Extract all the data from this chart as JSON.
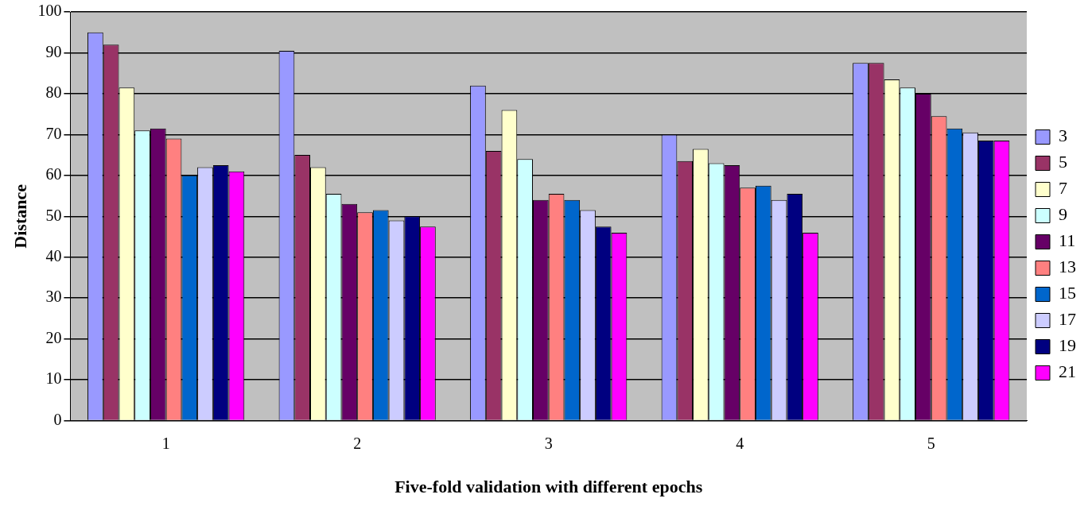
{
  "chart_data": {
    "type": "bar",
    "xlabel": "Five-fold validation with different epochs",
    "ylabel": "Distance",
    "categories": [
      "1",
      "2",
      "3",
      "4",
      "5"
    ],
    "series": [
      {
        "name": "3",
        "color": "#9999ff",
        "values": [
          95,
          90.5,
          82,
          70,
          87.5
        ]
      },
      {
        "name": "5",
        "color": "#993366",
        "values": [
          92,
          65,
          66,
          63.5,
          87.5
        ]
      },
      {
        "name": "7",
        "color": "#ffffcc",
        "values": [
          81.5,
          62,
          76,
          66.5,
          83.5
        ]
      },
      {
        "name": "9",
        "color": "#ccffff",
        "values": [
          71,
          55.5,
          64,
          63,
          81.5
        ]
      },
      {
        "name": "11",
        "color": "#660066",
        "values": [
          71.5,
          53,
          54,
          62.5,
          80
        ]
      },
      {
        "name": "13",
        "color": "#ff8080",
        "values": [
          69,
          51,
          55.5,
          57,
          74.5
        ]
      },
      {
        "name": "15",
        "color": "#0066cc",
        "values": [
          60,
          51.5,
          54,
          57.5,
          71.5
        ]
      },
      {
        "name": "17",
        "color": "#ccccff",
        "values": [
          62,
          49,
          51.5,
          54,
          70.5
        ]
      },
      {
        "name": "19",
        "color": "#000080",
        "values": [
          62.5,
          50,
          47.5,
          55.5,
          68.5
        ]
      },
      {
        "name": "21",
        "color": "#ff00ff",
        "values": [
          61,
          47.5,
          46,
          46,
          68.5
        ]
      }
    ],
    "ylim": [
      0,
      100
    ],
    "yticks": [
      0,
      10,
      20,
      30,
      40,
      50,
      60,
      70,
      80,
      90,
      100
    ],
    "grid": "y",
    "legend": "right"
  }
}
